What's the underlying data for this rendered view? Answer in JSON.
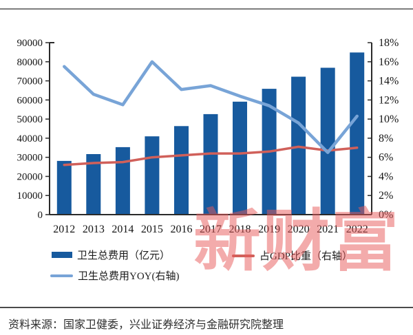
{
  "chart_data": {
    "type": "bar",
    "title": "",
    "categories": [
      "2012",
      "2013",
      "2014",
      "2015",
      "2016",
      "2017",
      "2018",
      "2019",
      "2020",
      "2021",
      "2022"
    ],
    "series": [
      {
        "name": "卫生总费用（亿元）",
        "type": "bar",
        "axis": "left",
        "color": "#175A9E",
        "values": [
          28119,
          31669,
          35312,
          40975,
          46345,
          52598,
          59122,
          65842,
          72175,
          76845,
          84847
        ]
      },
      {
        "name": "占GDP比重（右轴）",
        "type": "line",
        "axis": "right",
        "color": "#D0605A",
        "values": [
          5.2,
          5.4,
          5.5,
          6.0,
          6.2,
          6.4,
          6.4,
          6.6,
          7.1,
          6.7,
          7.0
        ]
      },
      {
        "name": "卫生总费用YOY(右轴)",
        "type": "line",
        "axis": "right",
        "color": "#78A4D7",
        "values": [
          15.5,
          12.6,
          11.5,
          16.0,
          13.1,
          13.5,
          12.4,
          11.4,
          9.6,
          6.5,
          10.3
        ]
      }
    ],
    "left_axis": {
      "min": 0,
      "max": 90000,
      "step": 10000,
      "tick_labels": [
        "0",
        "10000",
        "20000",
        "30000",
        "40000",
        "50000",
        "60000",
        "70000",
        "80000",
        "90000"
      ]
    },
    "right_axis": {
      "min": 0,
      "max": 18,
      "step": 2,
      "tick_labels": [
        "0%",
        "2%",
        "4%",
        "6%",
        "8%",
        "10%",
        "12%",
        "14%",
        "16%",
        "18%"
      ]
    },
    "grid": false,
    "legend_position": "bottom"
  },
  "watermark": {
    "text": "新财富",
    "color": "#E75858"
  },
  "footer": {
    "source_text": "资料来源：国家卫健委，兴业证券经济与金融研究院整理"
  }
}
